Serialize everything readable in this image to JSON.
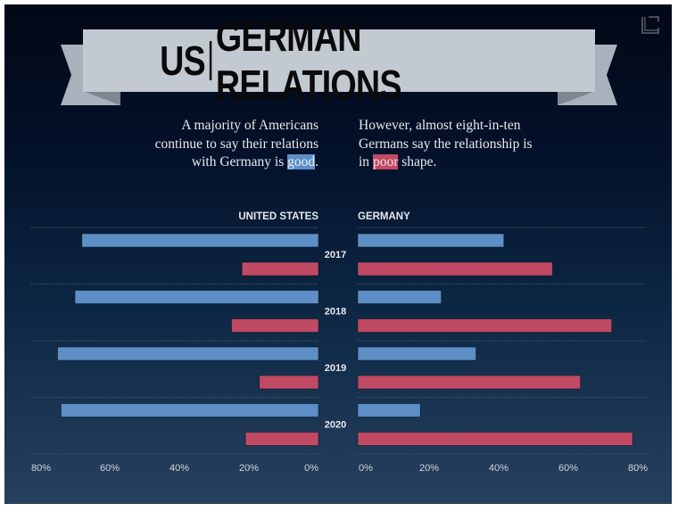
{
  "header": {
    "title_left": "US",
    "title_right": "GERMAN RELATIONS",
    "corner_icon": "frame-corner-icon"
  },
  "blurbs": {
    "us": {
      "pre": "A majority of Americans continue to say their relations with Germany is ",
      "highlight": "good",
      "post": "."
    },
    "germany": {
      "pre": "However, almost eight-in-ten Germans say the relationship is in ",
      "highlight": "poor",
      "post": " shape."
    }
  },
  "colors": {
    "good": "#5d8fc6",
    "poor": "#c04a63",
    "background_top": "#020816",
    "background_bottom": "#26405e"
  },
  "chart_data": {
    "type": "bar",
    "title": "US | GERMAN RELATIONS",
    "orientation": "horizontal",
    "layout": "back-to-back",
    "categories": [
      "2017",
      "2018",
      "2019",
      "2020"
    ],
    "legend": [
      {
        "name": "good",
        "color": "#5d8fc6"
      },
      {
        "name": "poor",
        "color": "#c04a63"
      }
    ],
    "panels": [
      {
        "name": "UNITED STATES",
        "direction": "left",
        "xlim": [
          0,
          80
        ],
        "ticks": [
          "80%",
          "60%",
          "40%",
          "20%",
          "0%"
        ],
        "series": [
          {
            "name": "good",
            "values": [
              68,
              70,
              75,
              74
            ]
          },
          {
            "name": "poor",
            "values": [
              22,
              25,
              17,
              21
            ]
          }
        ]
      },
      {
        "name": "GERMANY",
        "direction": "right",
        "xlim": [
          0,
          80
        ],
        "ticks": [
          "0%",
          "20%",
          "40%",
          "60%",
          "80%"
        ],
        "series": [
          {
            "name": "good",
            "values": [
              42,
              24,
              34,
              18
            ]
          },
          {
            "name": "poor",
            "values": [
              56,
              73,
              64,
              79
            ]
          }
        ]
      }
    ],
    "grid": true
  }
}
